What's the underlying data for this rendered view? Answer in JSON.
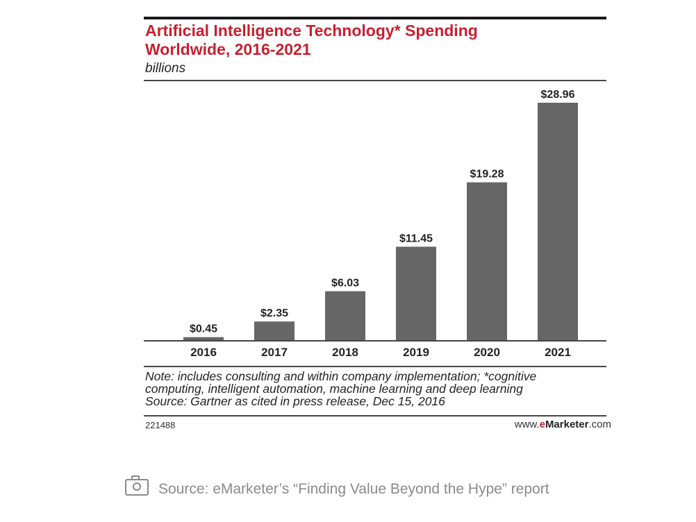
{
  "chart_data": {
    "type": "bar",
    "title_lines": [
      "Artificial Intelligence Technology* Spending",
      "Worldwide, 2016-2021"
    ],
    "subtitle": "billions",
    "categories": [
      "2016",
      "2017",
      "2018",
      "2019",
      "2020",
      "2021"
    ],
    "values": [
      0.45,
      2.35,
      6.03,
      11.45,
      19.28,
      28.96
    ],
    "value_labels": [
      "$0.45",
      "$2.35",
      "$6.03",
      "$11.45",
      "$19.28",
      "$28.96"
    ],
    "xlabel": "",
    "ylabel": "",
    "ylim": [
      0,
      28.96
    ],
    "grid": false,
    "legend": "none",
    "bar_color": "#666666",
    "title_color": "#c8202f"
  },
  "notes": [
    "Note: includes consulting and within company implementation; *cognitive",
    "computing, intelligent automation, machine learning and deep learning",
    "Source: Gartner as cited in press release, Dec 15, 2016"
  ],
  "footer": {
    "chart_id": "221488",
    "brand_prefix": "www.",
    "brand_e": "e",
    "brand_name": "Marketer",
    "brand_suffix": ".com"
  },
  "caption": {
    "icon": "camera-icon",
    "text": "Source: eMarketer’s “Finding Value Beyond the Hype” report"
  }
}
